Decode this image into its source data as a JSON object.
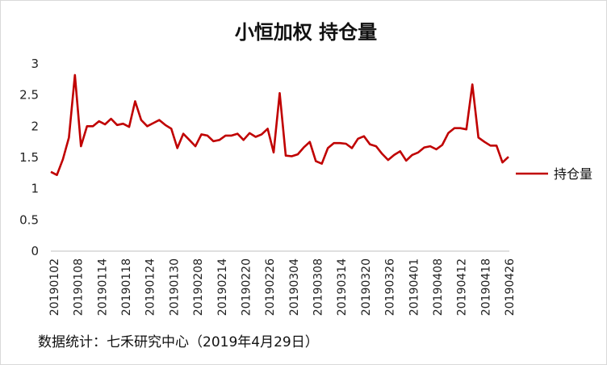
{
  "chart_data": {
    "type": "line",
    "title": "小恒加权 持仓量",
    "xlabel": "",
    "ylabel": "",
    "ylim": [
      0,
      3
    ],
    "yticks": [
      "0",
      "0.5",
      "1",
      "1.5",
      "2",
      "2.5",
      "3"
    ],
    "x_tick_labels": [
      "20190102",
      "20190108",
      "20190114",
      "20190118",
      "20190124",
      "20190130",
      "20190208",
      "20190214",
      "20190220",
      "20190226",
      "20190304",
      "20190308",
      "20190314",
      "20190320",
      "20190326",
      "20190401",
      "20190408",
      "20190412",
      "20190418",
      "20190426"
    ],
    "grid": false,
    "legend_position": "right",
    "color": "#C00000",
    "series": [
      {
        "name": "持仓量",
        "values": [
          1.27,
          1.22,
          1.47,
          1.82,
          2.82,
          1.68,
          2.0,
          2.0,
          2.08,
          2.03,
          2.12,
          2.02,
          2.04,
          1.99,
          2.4,
          2.1,
          2.0,
          2.05,
          2.1,
          2.02,
          1.96,
          1.65,
          1.88,
          1.78,
          1.68,
          1.87,
          1.85,
          1.76,
          1.78,
          1.85,
          1.85,
          1.88,
          1.78,
          1.89,
          1.83,
          1.87,
          1.96,
          1.58,
          2.53,
          1.53,
          1.52,
          1.55,
          1.66,
          1.75,
          1.44,
          1.4,
          1.65,
          1.73,
          1.73,
          1.72,
          1.65,
          1.8,
          1.84,
          1.71,
          1.68,
          1.56,
          1.46,
          1.54,
          1.6,
          1.45,
          1.54,
          1.58,
          1.66,
          1.68,
          1.63,
          1.7,
          1.89,
          1.97,
          1.97,
          1.95,
          2.67,
          1.82,
          1.75,
          1.69,
          1.69,
          1.42,
          1.51
        ]
      }
    ]
  },
  "source_note": "数据统计：七禾研究中心（2019年4月29日）"
}
